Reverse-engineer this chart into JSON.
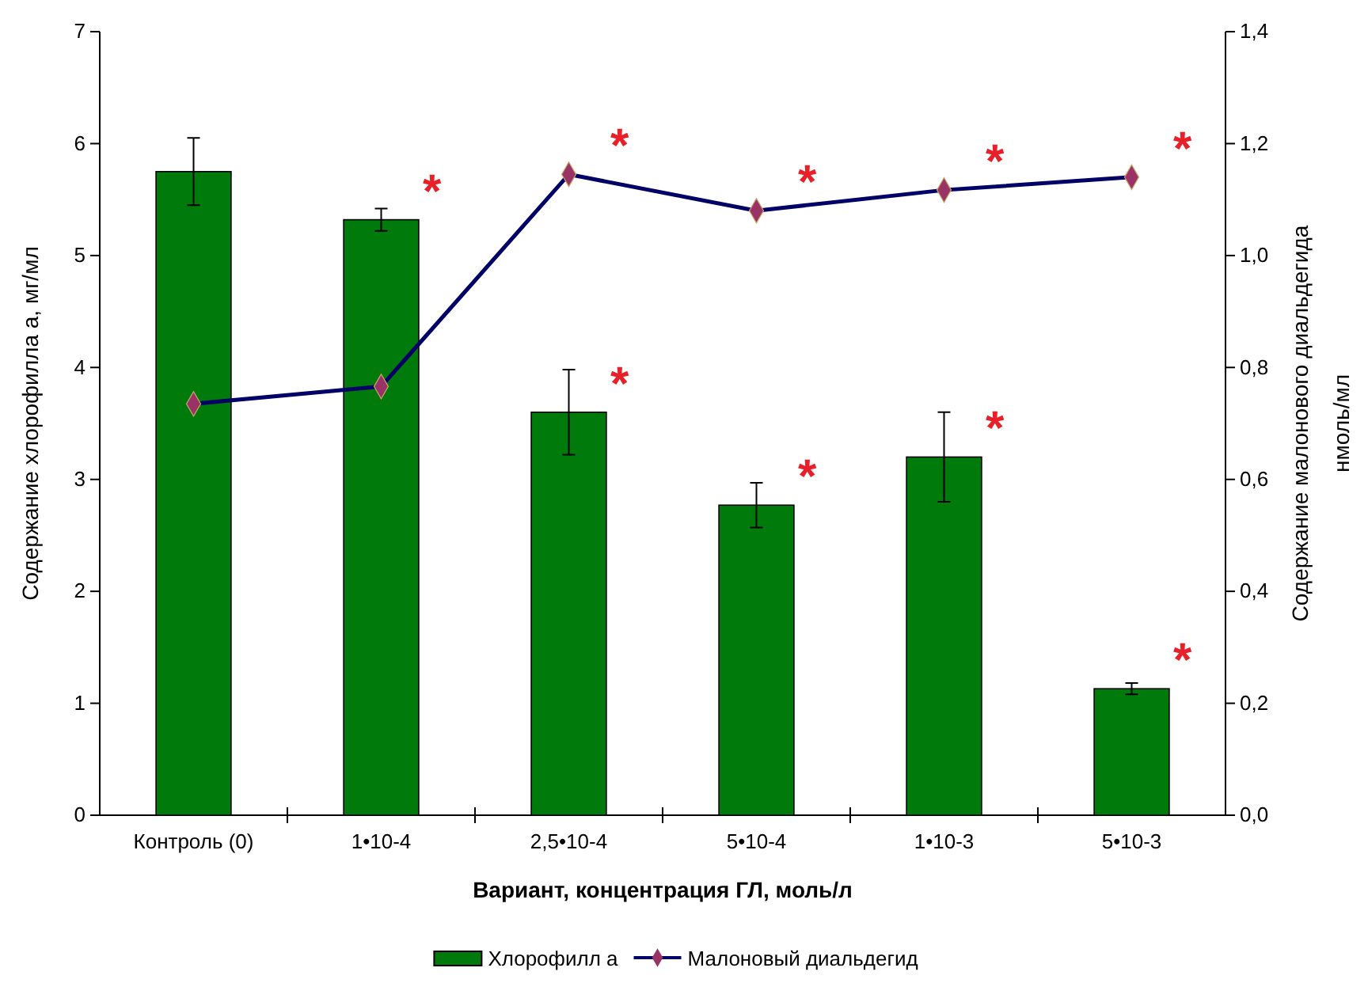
{
  "chart_data": {
    "type": "bar",
    "xlabel": "Вариант, концентрация ГЛ, моль/л",
    "ylabel": "Содержание хлорофилла а, мг/мл",
    "y2label": "Содержание малонового диальдегида нмоль/мл",
    "categories": [
      "Контроль (0)",
      "1•10-4",
      "2,5•10-4",
      "5•10-4",
      "1•10-3",
      "5•10-3"
    ],
    "series": [
      {
        "name": "Хлорофилл а",
        "color": "#007a0a",
        "values": [
          5.75,
          5.32,
          3.6,
          2.77,
          3.2,
          1.13
        ],
        "errors": [
          0.3,
          0.1,
          0.38,
          0.2,
          0.4,
          0.05
        ]
      },
      {
        "name": "Малоновый диальдегид",
        "type": "line",
        "axis": "y2",
        "color": "#000066",
        "marker": "diamond",
        "values": [
          0.735,
          0.766,
          1.145,
          1.08,
          1.117,
          1.14
        ]
      }
    ],
    "ylim": [
      0,
      7
    ],
    "yticks": [
      0,
      1,
      2,
      3,
      4,
      5,
      6,
      7
    ],
    "y2lim": [
      0,
      1.4
    ],
    "y2ticks": [
      {
        "value": 0,
        "label": "0,0"
      },
      {
        "value": 0.2,
        "label": "0,2"
      },
      {
        "value": 0.4,
        "label": "0,4"
      },
      {
        "value": 0.6,
        "label": "0,6"
      },
      {
        "value": 0.8,
        "label": "0,8"
      },
      {
        "value": 1,
        "label": "1,0"
      },
      {
        "value": 1.2,
        "label": "1,2"
      },
      {
        "value": 1.4,
        "label": "1,4"
      }
    ],
    "legend": "bottom",
    "grid": false,
    "annotations": [
      {
        "text": "*",
        "x": "1•10-4",
        "y": 5.32
      },
      {
        "text": "*",
        "x": "2,5•10-4",
        "y": 5.725
      },
      {
        "text": "*",
        "x": "2,5•10-4",
        "y": 3.6
      },
      {
        "text": "*",
        "x": "5•10-4",
        "y": 5.4
      },
      {
        "text": "*",
        "x": "5•10-4",
        "y": 2.77
      },
      {
        "text": "*",
        "x": "1•10-3",
        "y": 5.585
      },
      {
        "text": "*",
        "x": "1•10-3",
        "y": 3.2
      },
      {
        "text": "*",
        "x": "5•10-3",
        "y": 5.7
      },
      {
        "text": "*",
        "x": "5•10-3",
        "y": 1.13
      }
    ]
  }
}
